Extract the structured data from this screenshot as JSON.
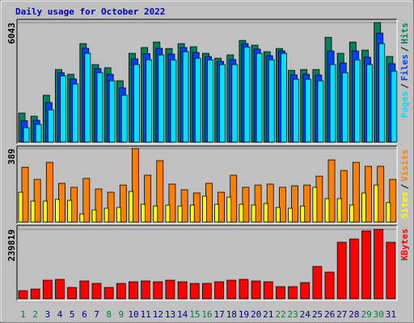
{
  "chart_data": [
    {
      "type": "bar",
      "title": "Daily usage for October 2022",
      "title_color": "#0000c0",
      "ylim": [
        0,
        6043
      ],
      "yticks": [
        6043
      ],
      "separator": "/",
      "series": [
        {
          "name": "Hits",
          "color": "#00805c",
          "values": [
            1470,
            1310,
            2370,
            3670,
            3430,
            4980,
            3920,
            3760,
            3100,
            4490,
            4780,
            5060,
            4730,
            4980,
            4820,
            4490,
            4240,
            4410,
            5140,
            4900,
            4570,
            4730,
            3630,
            3670,
            3670,
            5300,
            4490,
            5060,
            4650,
            6043,
            4330
          ]
        },
        {
          "name": "Files",
          "color": "#0040ff",
          "values": [
            1080,
            1100,
            2000,
            3510,
            3190,
            4740,
            3720,
            3430,
            2740,
            4210,
            4470,
            4740,
            4450,
            4780,
            4530,
            4330,
            4080,
            4170,
            4980,
            4700,
            4370,
            4610,
            3400,
            3430,
            3390,
            4610,
            4000,
            4610,
            4290,
            5510,
            3960
          ]
        },
        {
          "name": "Pages",
          "color": "#00e0ff",
          "values": [
            730,
            900,
            1630,
            3350,
            2940,
            4490,
            3510,
            3100,
            2370,
            3920,
            4160,
            4410,
            4160,
            4570,
            4240,
            4160,
            3920,
            3920,
            4810,
            4490,
            4160,
            4490,
            3180,
            3180,
            3100,
            3920,
            3510,
            4160,
            3920,
            4980,
            3590
          ]
        }
      ]
    },
    {
      "type": "bar",
      "ylim": [
        0,
        389
      ],
      "yticks": [
        389
      ],
      "separator": "/",
      "series": [
        {
          "name": "Visits",
          "color": "#ff8000",
          "values": [
            290,
            226,
            316,
            205,
            184,
            231,
            175,
            158,
            196,
            389,
            248,
            325,
            201,
            171,
            154,
            205,
            158,
            248,
            184,
            196,
            201,
            184,
            192,
            196,
            243,
            329,
            273,
            316,
            295,
            295,
            226
          ]
        },
        {
          "name": "Sites",
          "color": "#ffff00",
          "values": [
            158,
            111,
            111,
            120,
            115,
            43,
            64,
            73,
            77,
            162,
            94,
            85,
            90,
            85,
            90,
            137,
            94,
            132,
            94,
            90,
            98,
            77,
            73,
            85,
            184,
            124,
            124,
            90,
            154,
            196,
            103
          ]
        }
      ]
    },
    {
      "type": "bar",
      "ylim": [
        0,
        239819
      ],
      "yticks": [
        239819
      ],
      "categories": [
        "1",
        "2",
        "3",
        "4",
        "5",
        "6",
        "7",
        "8",
        "9",
        "10",
        "11",
        "12",
        "13",
        "14",
        "15",
        "16",
        "17",
        "18",
        "19",
        "20",
        "21",
        "22",
        "23",
        "24",
        "25",
        "26",
        "27",
        "28",
        "29",
        "30",
        "31"
      ],
      "category_colors": [
        "#008040",
        "#008040",
        "#000080",
        "#000080",
        "#000080",
        "#000080",
        "#000080",
        "#008040",
        "#008040",
        "#000080",
        "#000080",
        "#000080",
        "#000080",
        "#000080",
        "#008040",
        "#008040",
        "#000080",
        "#000080",
        "#000080",
        "#000080",
        "#000080",
        "#008040",
        "#008040",
        "#000080",
        "#000080",
        "#000080",
        "#000080",
        "#000080",
        "#008040",
        "#008040",
        "#000080"
      ],
      "series": [
        {
          "name": "KBytes",
          "color": "#ff0000",
          "values": [
            27900,
            33500,
            64100,
            66900,
            39000,
            61400,
            53000,
            39000,
            53000,
            58600,
            61400,
            58600,
            64100,
            58600,
            53000,
            53000,
            58600,
            64100,
            66900,
            61400,
            58600,
            41800,
            41800,
            55800,
            111600,
            92000,
            195200,
            206400,
            234300,
            239819,
            195200
          ]
        }
      ]
    }
  ]
}
